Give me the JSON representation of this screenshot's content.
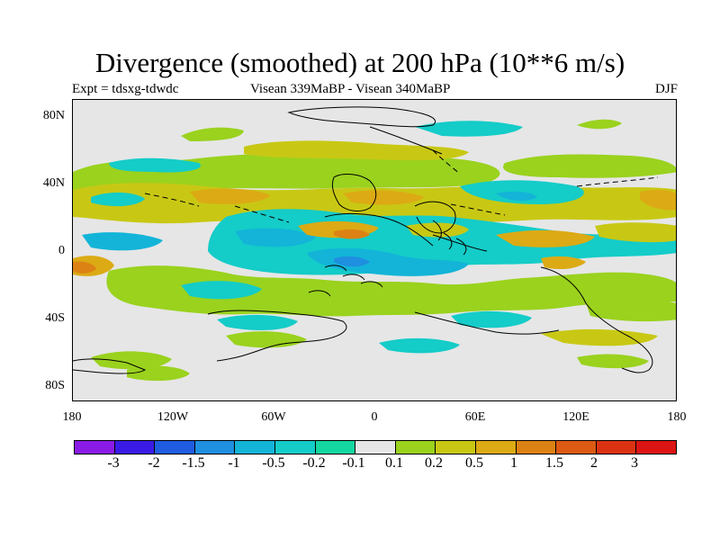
{
  "title": "Divergence (smoothed) at 200 hPa (10**6 m/s)",
  "expt_label": "Expt = tdsxg-tdwdc",
  "period_label": "Visean 339MaBP - Visean  340MaBP",
  "season_label": "DJF",
  "y_axis_labels": [
    "80N",
    "40N",
    "0",
    "40S",
    "80S"
  ],
  "x_axis_labels": [
    "180",
    "120W",
    "60W",
    "0",
    "60E",
    "120E",
    "180"
  ],
  "colorbar": {
    "colors": [
      "#8a1be6",
      "#3a1be6",
      "#1f5ce0",
      "#1f8fe0",
      "#13b4d8",
      "#14ccc8",
      "#14d6a0",
      "#e6e6e6",
      "#9ad21e",
      "#c8c814",
      "#dcaa14",
      "#dc8214",
      "#dc5a14",
      "#dc3214",
      "#dc1414"
    ],
    "labels": [
      "-3",
      "-2",
      "-1.5",
      "-1",
      "-0.5",
      "-0.2",
      "-0.1",
      "0.1",
      "0.2",
      "0.5",
      "1",
      "1.5",
      "2",
      "3"
    ]
  }
}
